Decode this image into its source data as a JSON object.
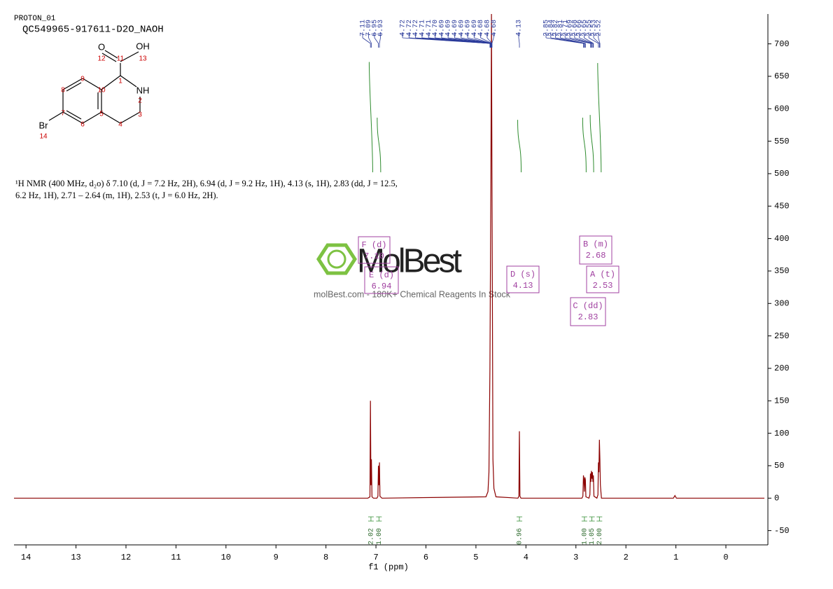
{
  "header": {
    "program": "PROTON_01",
    "sample": "QC549965-917611-D2O_NAOH"
  },
  "structure": {
    "labels": [
      "O",
      "12",
      "11",
      "OH",
      "13",
      "1",
      "NH",
      "2",
      "3",
      "4",
      "5",
      "10",
      "9",
      "8",
      "7",
      "6",
      "Br",
      "14"
    ]
  },
  "description": "¹H NMR (400 MHz, d₂o) δ 7.10 (d, J = 7.2 Hz, 2H), 6.94 (d, J = 9.2 Hz, 1H), 4.13 (s, 1H), 2.83 (dd, J = 12.5, 6.2 Hz, 1H), 2.71 – 2.64 (m, 1H), 2.53 (t, J = 6.0 Hz, 2H).",
  "watermark": {
    "logo": "MolBest",
    "tagline": "molBest.com - 180K+ Chemical Reagents In Stock"
  },
  "chart_data": {
    "type": "line",
    "xlabel": "f1 (ppm)",
    "xlim": [
      14.24,
      -0.77
    ],
    "xticks": [
      14,
      13,
      12,
      11,
      10,
      9,
      8,
      7,
      6,
      5,
      4,
      3,
      2,
      1,
      0
    ],
    "ylim": [
      -72,
      746
    ],
    "yticks": [
      -50,
      0,
      50,
      100,
      150,
      200,
      250,
      300,
      350,
      400,
      450,
      500,
      550,
      600,
      650,
      700
    ],
    "x": [
      14.24,
      7.16,
      7.12,
      7.11,
      7.1,
      7.09,
      7.08,
      7.05,
      6.98,
      6.96,
      6.95,
      6.94,
      6.93,
      6.92,
      6.88,
      4.8,
      4.76,
      4.74,
      4.72,
      4.7,
      4.69,
      4.68,
      4.66,
      4.64,
      4.6,
      4.16,
      4.14,
      4.13,
      4.12,
      4.1,
      2.88,
      2.86,
      2.85,
      2.84,
      2.83,
      2.82,
      2.81,
      2.8,
      2.74,
      2.72,
      2.71,
      2.7,
      2.69,
      2.68,
      2.67,
      2.66,
      2.65,
      2.64,
      2.58,
      2.56,
      2.55,
      2.54,
      2.53,
      2.52,
      2.51,
      2.49,
      1.05,
      1.02,
      0.99,
      -0.77
    ],
    "series": [
      {
        "color": "#8b0000",
        "values": [
          0,
          0,
          2,
          150,
          20,
          60,
          2,
          0,
          0,
          3,
          50,
          20,
          55,
          3,
          0,
          2,
          10,
          40,
          200,
          500,
          746,
          500,
          60,
          15,
          2,
          0,
          3,
          103,
          3,
          0,
          0,
          3,
          35,
          30,
          10,
          32,
          28,
          2,
          0,
          5,
          38,
          25,
          42,
          30,
          40,
          25,
          35,
          3,
          0,
          5,
          55,
          40,
          90,
          60,
          20,
          0,
          0,
          4,
          0,
          0
        ]
      }
    ],
    "peak_labels": [
      "7.11",
      "7.09",
      "6.95",
      "6.93",
      "4.72",
      "4.72",
      "4.72",
      "4.71",
      "4.71",
      "4.70",
      "4.69",
      "4.69",
      "4.69",
      "4.69",
      "4.69",
      "4.69",
      "4.68",
      "4.68",
      "4.68",
      "4.13",
      "2.85",
      "2.84",
      "2.82",
      "2.81",
      "2.71",
      "2.69",
      "2.68",
      "2.66",
      "2.65",
      "2.55",
      "2.53",
      "2.52"
    ],
    "peak_label_color": "#2a3a9a",
    "integrals": {
      "color": "#2e8b2e",
      "ppm": [
        7.1,
        6.94,
        4.13,
        2.83,
        2.68,
        2.53
      ],
      "values": [
        2.02,
        1.0,
        0.96,
        1.0,
        1.05,
        2.0
      ],
      "value_labels": [
        "2.02",
        "1.00",
        "0.96",
        "1.00",
        "1.05",
        "2.00"
      ]
    },
    "multiplets": {
      "color": "#a040a0",
      "items": [
        {
          "label": "F (d)",
          "shift": "7.10"
        },
        {
          "label": "E (d)",
          "shift": "6.94"
        },
        {
          "label": "D (s)",
          "shift": "4.13"
        },
        {
          "label": "B (m)",
          "shift": "2.68"
        },
        {
          "label": "A (t)",
          "shift": "2.53"
        },
        {
          "label": "C (dd)",
          "shift": "2.83"
        }
      ]
    }
  }
}
